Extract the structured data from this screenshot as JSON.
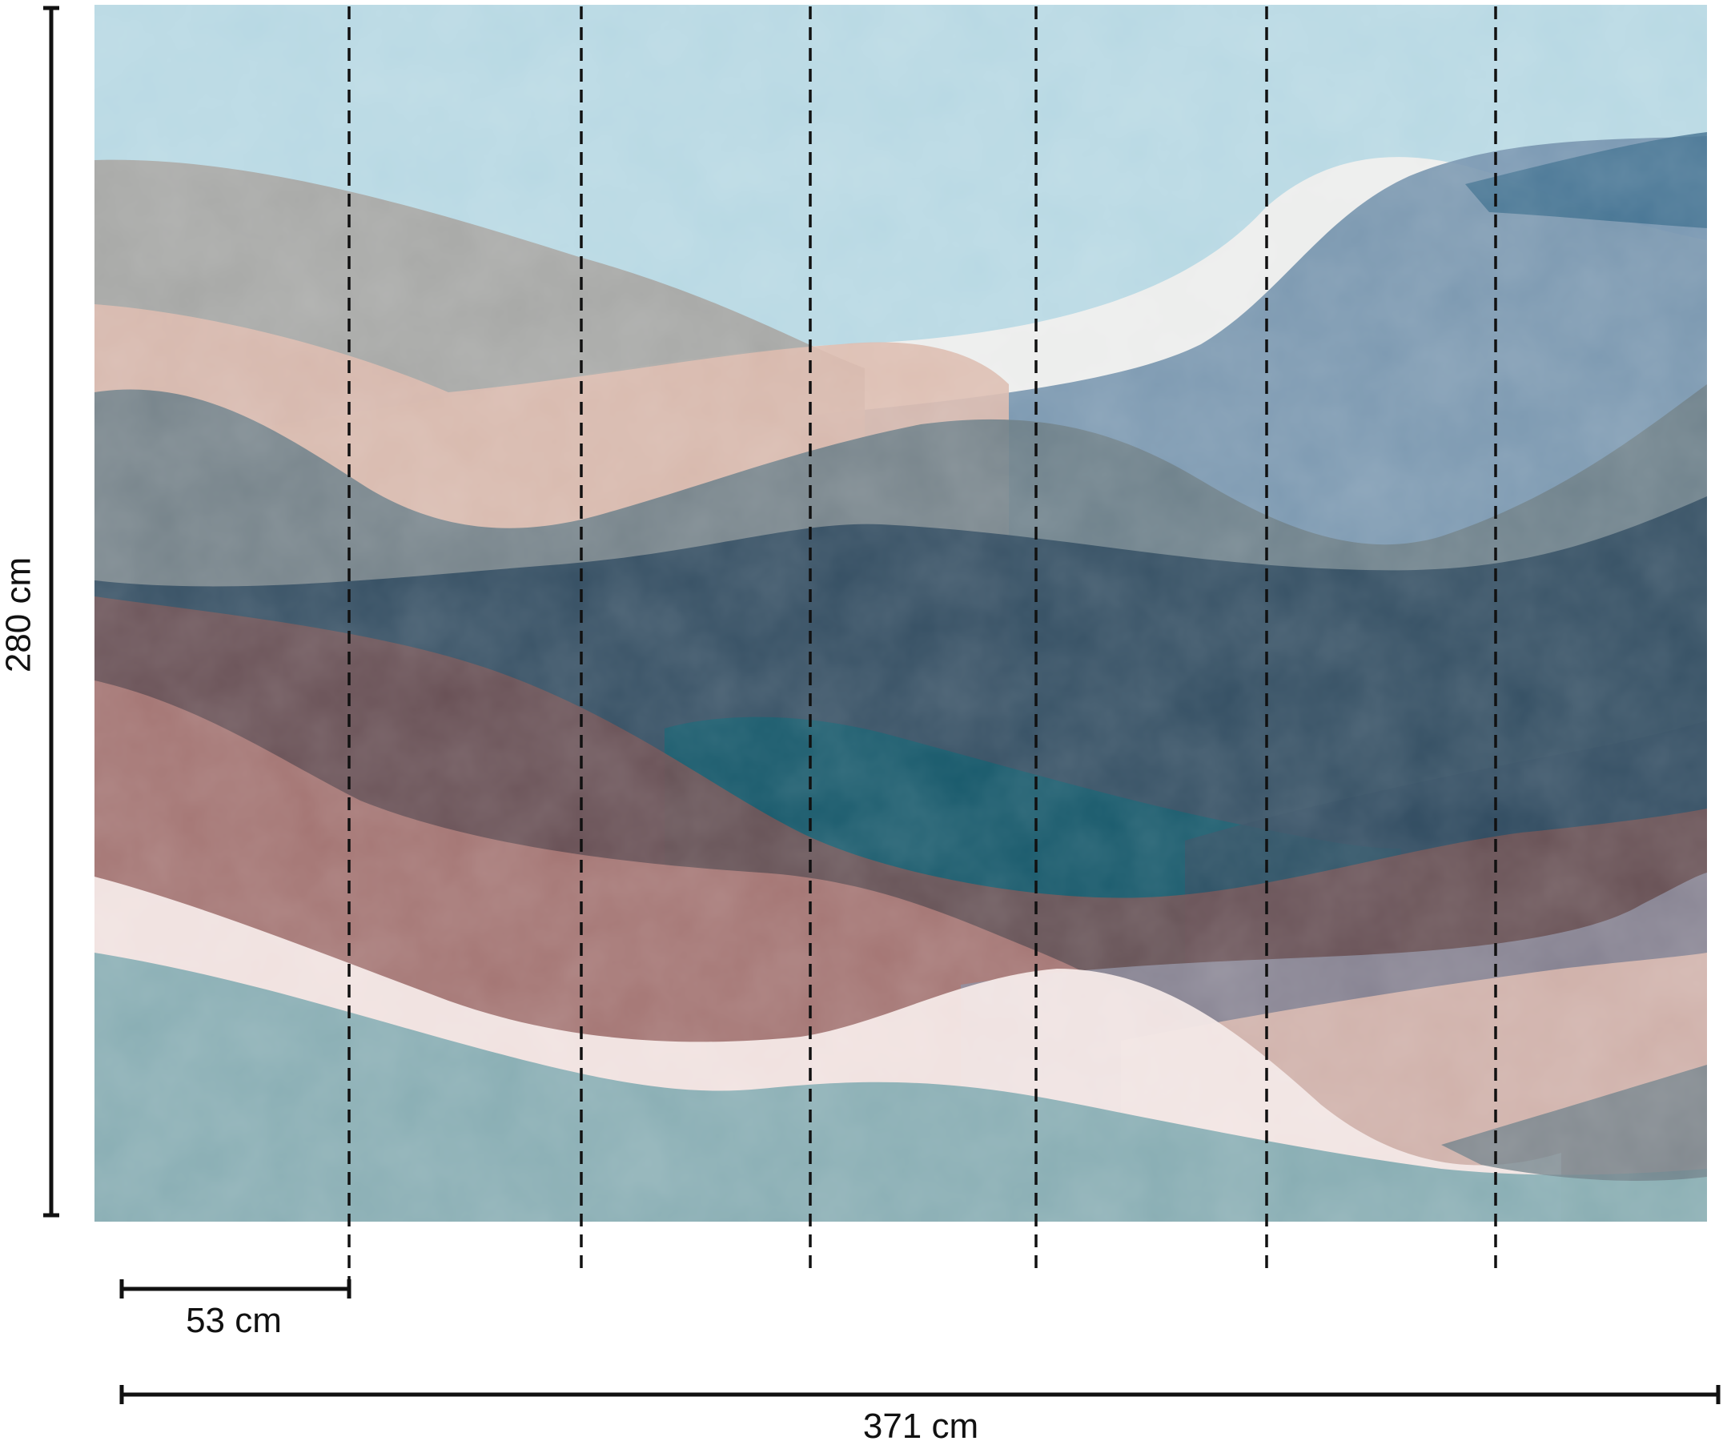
{
  "dimensions": {
    "height_label": "280 cm",
    "width_label": "371 cm",
    "panel_label": "53 cm"
  },
  "panels": {
    "count": 7,
    "panel_width_cm": 53,
    "total_width_cm": 371,
    "height_cm": 280
  },
  "colors": {
    "sky": "#b7d8e3",
    "white_wave": "#eeeeec",
    "steel_blue": "#6f8eaa",
    "deep_blue": "#40708f",
    "taupe": "#a4a3a0",
    "peach": "#dcb9ad",
    "slate": "#6b7d86",
    "navy": "#304b60",
    "teal": "#135a6b",
    "plum": "#6d5054",
    "rose": "#a77674",
    "lilac": "#8c8b9c",
    "blush": "#f3e6e4",
    "sea_green": "#86abb1",
    "dim_line": "#111111"
  }
}
